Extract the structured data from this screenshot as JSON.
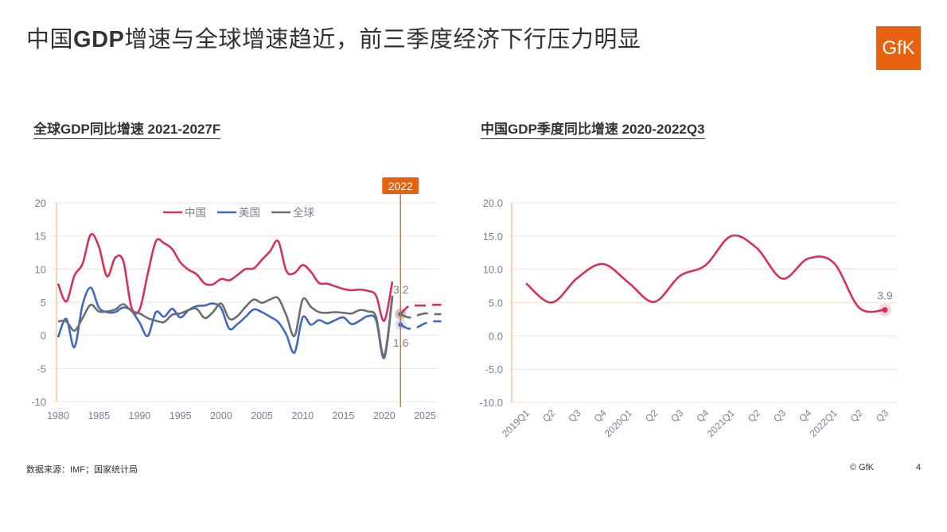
{
  "header": {
    "title_pre": "中国",
    "title_bold": "GDP",
    "title_post": "增速与全球增速趋近，前三季度经济下行压力明显",
    "logo": "GfK"
  },
  "colors": {
    "china": "#d6315b",
    "us": "#4169c0",
    "world": "#6b6f72",
    "accent": "#e8610e",
    "grid": "#fde3d3"
  },
  "chart_data": [
    {
      "type": "line",
      "title": "全球GDP同比增速 2021-2027F",
      "xlabel": "",
      "ylabel": "",
      "ylim": [
        -10,
        20
      ],
      "yticks": [
        "20",
        "15",
        "10",
        "5",
        "0",
        "-5",
        "-10"
      ],
      "ytick_values": [
        20,
        15,
        10,
        5,
        0,
        -5,
        -10
      ],
      "xticks": [
        "1980",
        "1985",
        "1990",
        "1995",
        "2000",
        "2005",
        "2010",
        "2015",
        "2020",
        "2025"
      ],
      "xtick_values": [
        1980,
        1985,
        1990,
        1995,
        2000,
        2005,
        2010,
        2015,
        2020,
        2025
      ],
      "x": [
        1980,
        1981,
        1982,
        1983,
        1984,
        1985,
        1986,
        1987,
        1988,
        1989,
        1990,
        1991,
        1992,
        1993,
        1994,
        1995,
        1996,
        1997,
        1998,
        1999,
        2000,
        2001,
        2002,
        2003,
        2004,
        2005,
        2006,
        2007,
        2008,
        2009,
        2010,
        2011,
        2012,
        2013,
        2014,
        2015,
        2016,
        2017,
        2018,
        2019,
        2020,
        2021,
        2022,
        2023,
        2024,
        2025,
        2026,
        2027
      ],
      "forecast_from": 2022,
      "marker_year": 2022,
      "marker_label": "2022",
      "legend": "top-center",
      "series": [
        {
          "name": "中国",
          "color_key": "china",
          "values": [
            7.8,
            5.1,
            9.0,
            10.8,
            15.2,
            13.4,
            8.9,
            11.7,
            11.2,
            4.2,
            3.9,
            9.3,
            14.2,
            13.9,
            13.0,
            11.0,
            9.9,
            9.2,
            7.8,
            7.7,
            8.5,
            8.3,
            9.1,
            10.0,
            10.1,
            11.4,
            12.7,
            14.2,
            9.7,
            9.4,
            10.6,
            9.6,
            7.9,
            7.8,
            7.4,
            7.0,
            6.8,
            6.9,
            6.7,
            6.0,
            2.2,
            8.1,
            3.2,
            4.4,
            4.5,
            4.5,
            4.6,
            4.6
          ],
          "label": "3.2"
        },
        {
          "name": "美国",
          "color_key": "us",
          "values": [
            -0.3,
            2.5,
            -1.8,
            4.6,
            7.2,
            4.2,
            3.5,
            3.5,
            4.2,
            3.7,
            1.9,
            -0.1,
            3.5,
            2.8,
            4.0,
            2.7,
            3.8,
            4.4,
            4.5,
            4.8,
            4.1,
            1.0,
            1.7,
            2.8,
            3.9,
            3.5,
            2.8,
            2.0,
            0.1,
            -2.6,
            2.7,
            1.6,
            2.3,
            1.8,
            2.3,
            2.7,
            1.7,
            2.2,
            2.9,
            2.3,
            -3.4,
            5.7,
            1.6,
            1.0,
            1.2,
            1.8,
            2.1,
            2.1
          ],
          "label": "1.6"
        },
        {
          "name": "全球",
          "color_key": "world",
          "values": [
            2.1,
            2.1,
            0.7,
            2.6,
            4.6,
            3.6,
            3.6,
            3.9,
            4.7,
            3.7,
            3.3,
            2.6,
            2.2,
            2.0,
            3.1,
            3.3,
            3.8,
            4.0,
            2.6,
            3.5,
            4.8,
            2.5,
            2.9,
            4.3,
            5.4,
            4.9,
            5.4,
            5.6,
            3.0,
            -0.1,
            5.4,
            4.3,
            3.5,
            3.4,
            3.5,
            3.4,
            3.3,
            3.8,
            3.6,
            2.8,
            -3.1,
            6.0,
            3.2,
            2.7,
            3.0,
            3.3,
            3.2,
            3.2
          ]
        }
      ]
    },
    {
      "type": "line",
      "title": "中国GDP季度同比增速 2020-2022Q3",
      "xlabel": "",
      "ylabel": "",
      "ylim": [
        -10,
        20
      ],
      "yticks": [
        "20.0",
        "15.0",
        "10.0",
        "5.0",
        "0.0",
        "-5.0",
        "-10.0"
      ],
      "ytick_values": [
        20,
        15,
        10,
        5,
        0,
        -5,
        -10
      ],
      "categories": [
        "2019Q1",
        "Q2",
        "Q3",
        "Q4",
        "2020Q1",
        "Q2",
        "Q3",
        "Q4",
        "2021Q1",
        "Q2",
        "Q3",
        "Q4",
        "2022Q1",
        "Q2",
        "Q3"
      ],
      "series": [
        {
          "name": "中国",
          "color_key": "china",
          "values": [
            7.9,
            5.0,
            8.7,
            10.8,
            8.0,
            5.1,
            9.0,
            10.6,
            15.0,
            13.2,
            8.6,
            11.6,
            11.0,
            4.2,
            3.9
          ],
          "label": "3.9"
        }
      ]
    }
  ],
  "footer": {
    "source": "数据来源：IMF；国家统计局",
    "copyright": "© GfK",
    "page": "4"
  }
}
